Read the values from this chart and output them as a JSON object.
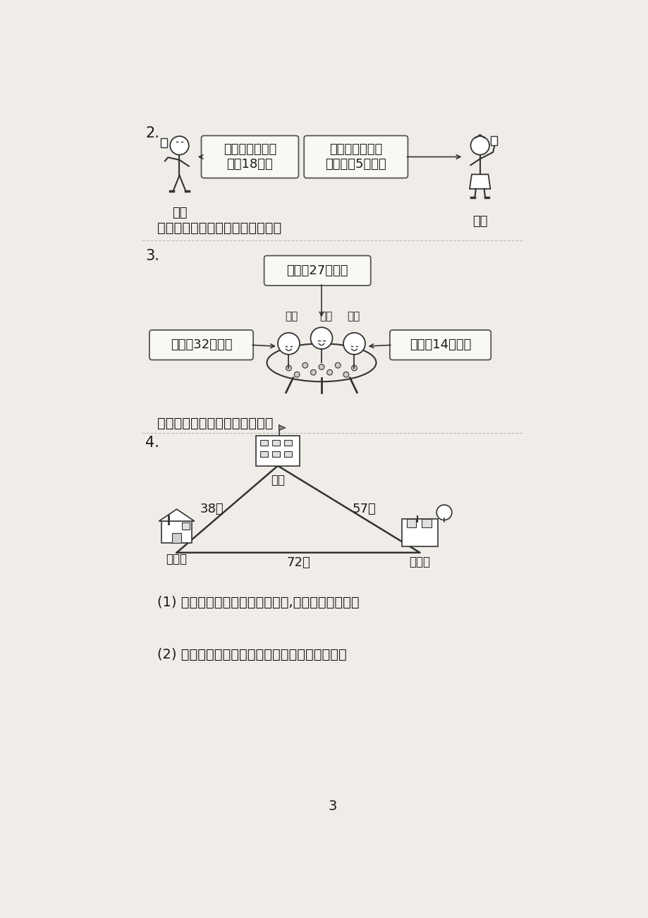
{
  "bg_color": "#f0ede8",
  "text_color": "#1a1a1a",
  "line_color": "#333333",
  "q2_number": "2.",
  "q2_xiaoming_label": "小明",
  "q2_xiaofang_label": "小芳",
  "q2_bubble1_line1": "我买这本故事书",
  "q2_bubble1_line2": "用了18元。",
  "q2_bubble2_line1": "我买这本科技书",
  "q2_bubble2_line2": "比你多用5元錢。",
  "q2_question": "小芳买这本科技书用了多少元錢？",
  "q3_number": "3.",
  "q3_bubble_top": "我做了27朵花。",
  "q3_bubble_left": "我做了32朵花。",
  "q3_bubble_right": "我做了14朵花。",
  "q3_name1": "小明",
  "q3_name2": "小华",
  "q3_name3": "小红",
  "q3_question": "三个小朋友一共做了多少朵花？",
  "q4_number": "4.",
  "q4_school_label": "学校",
  "q4_home_label": "小华家",
  "q4_palace_label": "少年宫",
  "q4_dist_home_school": "38米",
  "q4_dist_school_palace": "57米",
  "q4_dist_home_palace": "72米",
  "q4_q1": "(1) 小华从家经过学校再到少年宫,一共走了多少米？",
  "q4_q2": "(2) 小华走的这条路比直接走到少年宫远多少米？",
  "page_number": "3"
}
